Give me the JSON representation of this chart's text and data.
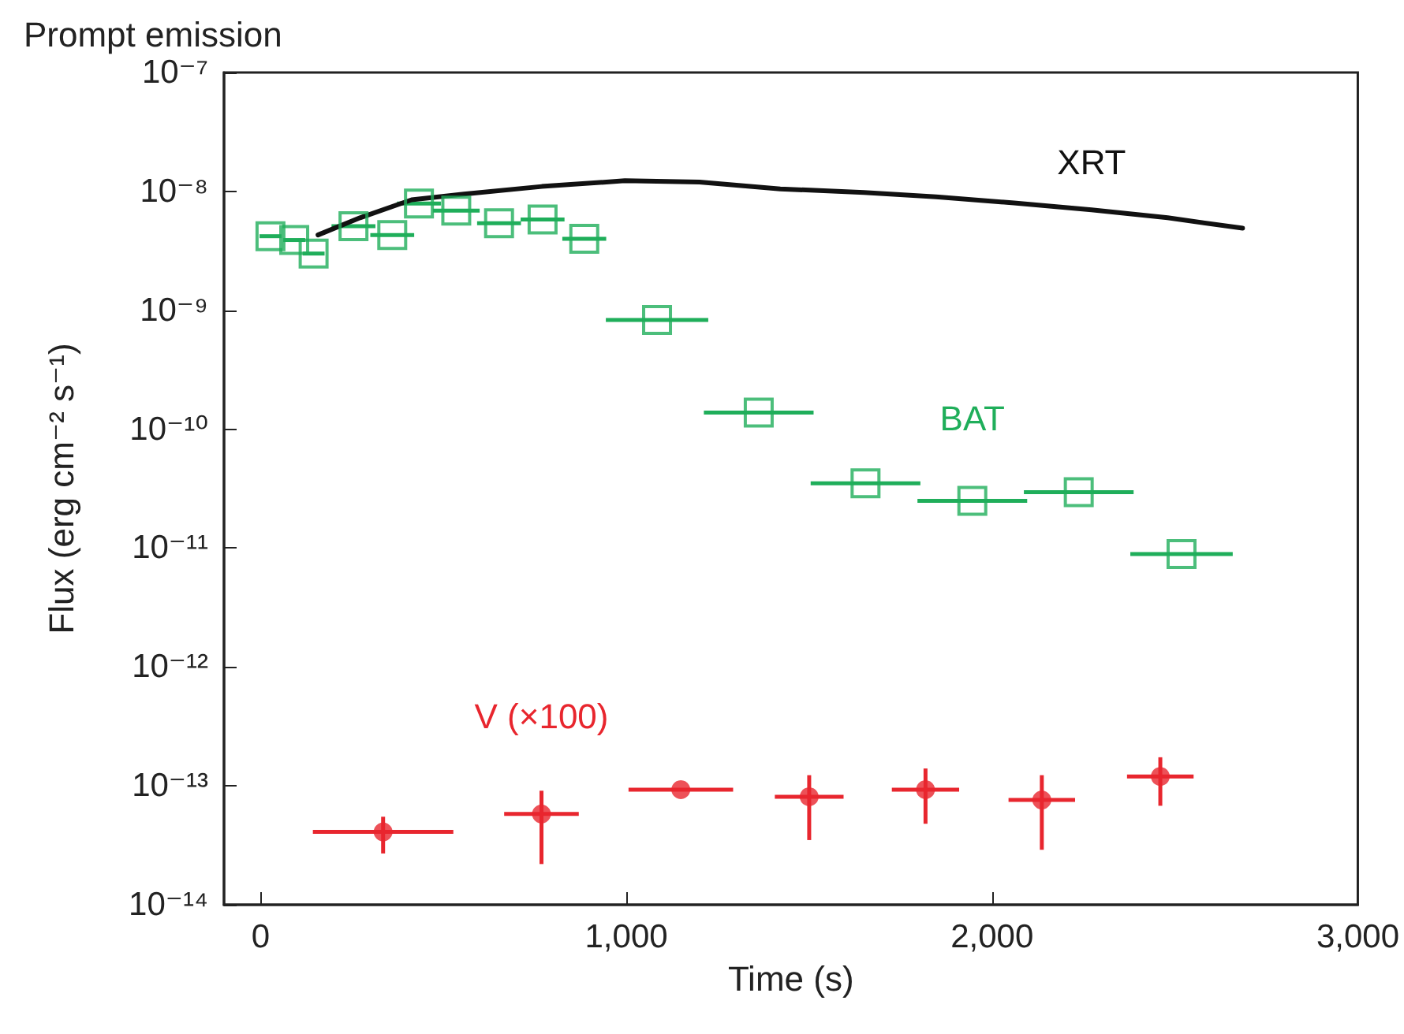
{
  "chart_data": {
    "type": "scatter",
    "title": "Prompt emission",
    "xlabel": "Time (s)",
    "ylabel": "Flux (erg cm⁻² s⁻¹)",
    "log": "y",
    "grid": false,
    "legend": false,
    "xlim": [
      -100,
      3000
    ],
    "xticks": [
      0,
      {
        "value": 1000,
        "label": "1,000"
      },
      {
        "value": 2000,
        "label": "2,000"
      },
      {
        "value": 3000,
        "label": "3,000"
      }
    ],
    "ylim": [
      1e-14,
      1e-07
    ],
    "yticks": [
      {
        "value": 1e-14,
        "label": "10⁻¹⁴"
      },
      {
        "value": 1e-13,
        "label": "10⁻¹³"
      },
      {
        "value": 1e-12,
        "label": "10⁻¹²"
      },
      {
        "value": 1e-11,
        "label": "10⁻¹¹"
      },
      {
        "value": 1e-10,
        "label": "10⁻¹⁰"
      },
      {
        "value": 1e-09,
        "label": "10⁻⁹"
      },
      {
        "value": 1e-08,
        "label": "10⁻⁸"
      },
      {
        "value": 1e-07,
        "label": "10⁻⁷"
      }
    ],
    "series": [
      {
        "name": "XRT",
        "type": "line",
        "marker": "none",
        "line_style": "solid",
        "color": "#111111",
        "x": [
          157,
          272,
          413,
          556,
          769,
          996,
          1200,
          1421,
          1650,
          1847,
          2060,
          2272,
          2480,
          2685
        ],
        "values": [
          4.3e-09,
          6e-09,
          8.5e-09,
          9.5e-09,
          1.1e-08,
          1.23e-08,
          1.2e-08,
          1.05e-08,
          9.8e-09,
          9e-09,
          8e-09,
          7e-09,
          6e-09,
          4.9e-09
        ]
      },
      {
        "name": "BAT",
        "marker": "square",
        "color": "#1fae5a",
        "x": [
          27,
          92,
          145,
          254,
          360,
          433,
          535,
          652,
          771,
          885,
          1084,
          1362,
          1654,
          1946,
          2237,
          2518
        ],
        "values": [
          4.2e-09,
          3.9e-09,
          3e-09,
          5.1e-09,
          4.3e-09,
          7.9e-09,
          6.9e-09,
          5.4e-09,
          5.8e-09,
          4e-09,
          8.3e-10,
          1.38e-10,
          3.5e-11,
          2.5e-11,
          2.95e-11,
          8.9e-12
        ],
        "xerrors": [
          30,
          30,
          30,
          60,
          60,
          60,
          64,
          60,
          60,
          60,
          140,
          150,
          150,
          150,
          150,
          140
        ]
      },
      {
        "name": "V (×100)",
        "marker": "circle",
        "color": "#e8262e",
        "x": [
          335,
          768,
          1149,
          1500,
          1818,
          2136,
          2460
        ],
        "values": [
          4.1e-14,
          5.8e-14,
          9.3e-14,
          8.1e-14,
          9.3e-14,
          7.6e-14,
          1.2e-13
        ],
        "xerrors": [
          192,
          102,
          143,
          94,
          92,
          91,
          91
        ],
        "errors": [
          [
            2.7e-14,
            5.5e-14
          ],
          [
            2.2e-14,
            9.1e-14
          ],
          null,
          [
            3.5e-14,
            1.23e-13
          ],
          [
            4.8e-14,
            1.4e-13
          ],
          [
            2.9e-14,
            1.23e-13
          ],
          [
            6.8e-14,
            1.74e-13
          ]
        ]
      }
    ]
  }
}
